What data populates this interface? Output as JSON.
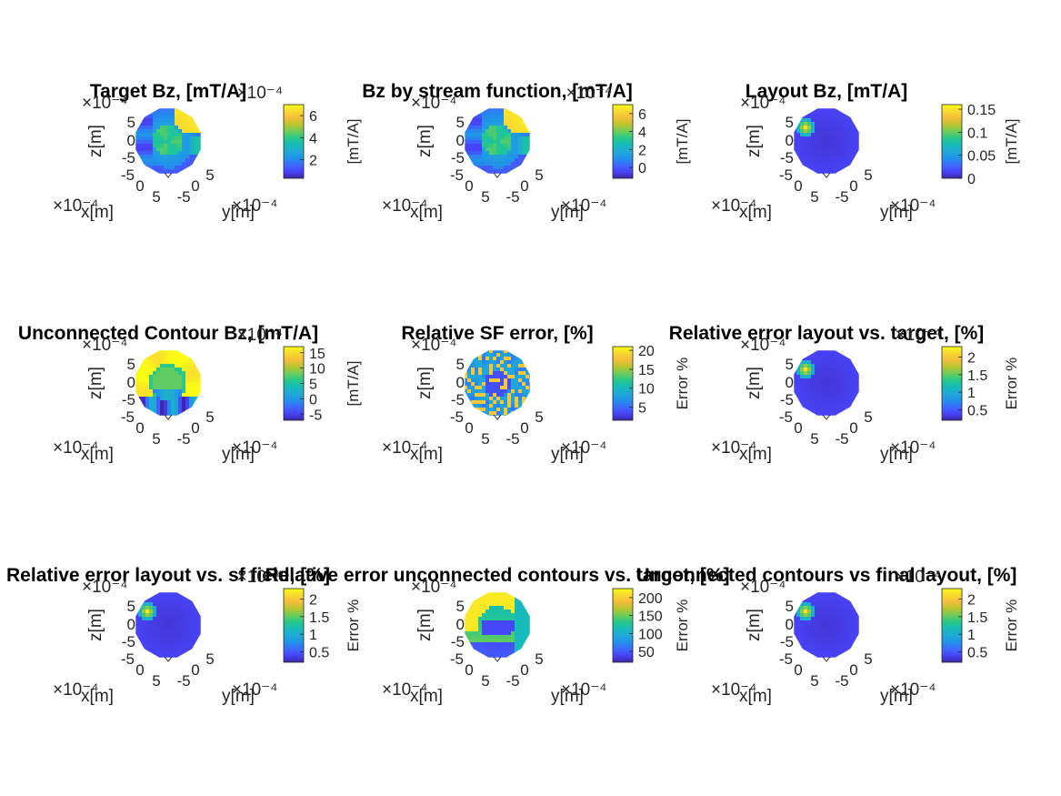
{
  "figure": {
    "background": "#ffffff"
  },
  "colormap": [
    "#3e26a8",
    "#4743f8",
    "#3c6bfe",
    "#1f93ea",
    "#22a9d7",
    "#15bbb8",
    "#27c88a",
    "#6ccd5a",
    "#b8c52f",
    "#f4bd3c",
    "#f9d931",
    "#f9fb15"
  ],
  "chart_data": [
    {
      "type": "heatmap",
      "panel": "target-bz",
      "title": "Target Bz, [mT/A]",
      "xlabel": "x[m]",
      "ylabel": "y[m]",
      "zlabel": "z[m]",
      "x_exponent": "×10⁻⁴",
      "y_exponent": "×10⁻⁴",
      "z_exponent": "×10⁻⁴",
      "cb_exponent": "×10⁻⁴",
      "x_ticks": [
        "0",
        "5"
      ],
      "y_ticks": [
        "-5",
        "0",
        "5"
      ],
      "z_ticks": [
        "5",
        "0",
        "-5",
        "-5"
      ],
      "colorbar": {
        "label": "[mT/A]",
        "ticks": [
          "6",
          "4",
          "2"
        ],
        "tick_values": [
          6,
          4,
          2
        ],
        "clim": [
          0.3,
          7
        ]
      },
      "pattern": "target"
    },
    {
      "type": "heatmap",
      "panel": "sf-bz",
      "title": "Bz by stream function, [mT/A]",
      "xlabel": "x[m]",
      "ylabel": "y[m]",
      "zlabel": "z[m]",
      "x_exponent": "×10⁻⁴",
      "y_exponent": "×10⁻⁴",
      "z_exponent": "×10⁻⁴",
      "cb_exponent": "×10⁻⁴",
      "x_ticks": [
        "0",
        "5"
      ],
      "y_ticks": [
        "-5",
        "0",
        "5"
      ],
      "z_ticks": [
        "5",
        "0",
        "-5",
        "-5"
      ],
      "colorbar": {
        "label": "[mT/A]",
        "ticks": [
          "6",
          "4",
          "2",
          "0"
        ],
        "tick_values": [
          6,
          4,
          2,
          0
        ],
        "clim": [
          -1.2,
          7
        ]
      },
      "pattern": "target"
    },
    {
      "type": "heatmap",
      "panel": "layout-bz",
      "title": "Layout Bz, [mT/A]",
      "xlabel": "x[m]",
      "ylabel": "y[m]",
      "zlabel": "z[m]",
      "x_exponent": "×10⁻⁴",
      "y_exponent": "×10⁻⁴",
      "z_exponent": "×10⁻⁴",
      "x_ticks": [
        "0",
        "5"
      ],
      "y_ticks": [
        "-5",
        "0",
        "5"
      ],
      "z_ticks": [
        "5",
        "0",
        "-5",
        "-5"
      ],
      "colorbar": {
        "label": "[mT/A]",
        "ticks": [
          "0.15",
          "0.1",
          "0.05",
          "0"
        ],
        "tick_values": [
          0.15,
          0.1,
          0.05,
          0
        ],
        "clim": [
          0,
          0.16
        ]
      },
      "pattern": "low"
    },
    {
      "type": "heatmap",
      "panel": "unconnected-bz",
      "title": "Unconnected Contour Bz, [mT/A]",
      "xlabel": "x[m]",
      "ylabel": "y[m]",
      "zlabel": "z[m]",
      "x_exponent": "×10⁻⁴",
      "y_exponent": "×10⁻⁴",
      "z_exponent": "×10⁻⁴",
      "cb_exponent": "×10⁻⁴",
      "x_ticks": [
        "0",
        "5"
      ],
      "y_ticks": [
        "-5",
        "0",
        "5"
      ],
      "z_ticks": [
        "5",
        "0",
        "-5",
        "-5"
      ],
      "colorbar": {
        "label": "[mT/A]",
        "ticks": [
          "15",
          "10",
          "5",
          "0",
          "-5"
        ],
        "tick_values": [
          15,
          10,
          5,
          0,
          -5
        ],
        "clim": [
          -7,
          17
        ]
      },
      "pattern": "unconnected"
    },
    {
      "type": "heatmap",
      "panel": "sf-error",
      "title": "Relative SF error, [%]",
      "xlabel": "x[m]",
      "ylabel": "y[m]",
      "zlabel": "z[m]",
      "x_exponent": "×10⁻⁴",
      "y_exponent": "×10⁻⁴",
      "z_exponent": "×10⁻⁴",
      "x_ticks": [
        "0",
        "5"
      ],
      "y_ticks": [
        "-5",
        "0",
        "5"
      ],
      "z_ticks": [
        "5",
        "0",
        "-5",
        "-5"
      ],
      "colorbar": {
        "label": "Error %",
        "ticks": [
          "20",
          "15",
          "10",
          "5"
        ],
        "tick_values": [
          20,
          15,
          10,
          5
        ],
        "clim": [
          1.5,
          21
        ]
      },
      "pattern": "sferror"
    },
    {
      "type": "heatmap",
      "panel": "layout-vs-target",
      "title": "Relative error layout vs. target, [%]",
      "xlabel": "x[m]",
      "ylabel": "y[m]",
      "zlabel": "z[m]",
      "x_exponent": "×10⁻⁴",
      "y_exponent": "×10⁻⁴",
      "z_exponent": "×10⁻⁴",
      "cb_exponent": "×10⁻⁴",
      "x_ticks": [
        "0",
        "5"
      ],
      "y_ticks": [
        "-5",
        "0",
        "5"
      ],
      "z_ticks": [
        "5",
        "0",
        "-5",
        "-5"
      ],
      "colorbar": {
        "label": "Error %",
        "ticks": [
          "2",
          "1.5",
          "1",
          "0.5"
        ],
        "tick_values": [
          2,
          1.5,
          1,
          0.5
        ],
        "clim": [
          0.2,
          2.3
        ]
      },
      "pattern": "low"
    },
    {
      "type": "heatmap",
      "panel": "layout-vs-sf",
      "title": "Relative error layout vs. sf field, [%]",
      "xlabel": "x[m]",
      "ylabel": "y[m]",
      "zlabel": "z[m]",
      "x_exponent": "×10⁻⁴",
      "y_exponent": "×10⁻⁴",
      "z_exponent": "×10⁻⁴",
      "cb_exponent": "×10⁻⁴",
      "x_ticks": [
        "0",
        "5"
      ],
      "y_ticks": [
        "-5",
        "0",
        "5"
      ],
      "z_ticks": [
        "5",
        "0",
        "-5",
        "-5"
      ],
      "colorbar": {
        "label": "Error %",
        "ticks": [
          "2",
          "1.5",
          "1",
          "0.5"
        ],
        "tick_values": [
          2,
          1.5,
          1,
          0.5
        ],
        "clim": [
          0.2,
          2.3
        ]
      },
      "pattern": "low"
    },
    {
      "type": "heatmap",
      "panel": "unconnected-vs-target",
      "title": "Relative error unconnected contours vs. target, [%]",
      "xlabel": "x[m]",
      "ylabel": "y[m]",
      "zlabel": "z[m]",
      "x_exponent": "×10⁻⁴",
      "y_exponent": "×10⁻⁴",
      "z_exponent": "×10⁻⁴",
      "x_ticks": [
        "0",
        "5"
      ],
      "y_ticks": [
        "-5",
        "0",
        "5"
      ],
      "z_ticks": [
        "5",
        "0",
        "-5",
        "-5"
      ],
      "colorbar": {
        "label": "Error %",
        "ticks": [
          "200",
          "150",
          "100",
          "50"
        ],
        "tick_values": [
          200,
          150,
          100,
          50
        ],
        "clim": [
          20,
          225
        ]
      },
      "pattern": "unconn_err"
    },
    {
      "type": "heatmap",
      "panel": "unconnected-vs-final",
      "title": "Unconnected contours vs final layout, [%]",
      "xlabel": "x[m]",
      "ylabel": "y[m]",
      "zlabel": "z[m]",
      "x_exponent": "×10⁻⁴",
      "y_exponent": "×10⁻⁴",
      "z_exponent": "×10⁻⁴",
      "cb_exponent": "×10⁻⁴",
      "x_ticks": [
        "0",
        "5"
      ],
      "y_ticks": [
        "-5",
        "0",
        "5"
      ],
      "z_ticks": [
        "5",
        "0",
        "-5",
        "-5"
      ],
      "colorbar": {
        "label": "Error %",
        "ticks": [
          "2",
          "1.5",
          "1",
          "0.5"
        ],
        "tick_values": [
          2,
          1.5,
          1,
          0.5
        ],
        "clim": [
          0.2,
          2.3
        ]
      },
      "pattern": "low"
    }
  ]
}
